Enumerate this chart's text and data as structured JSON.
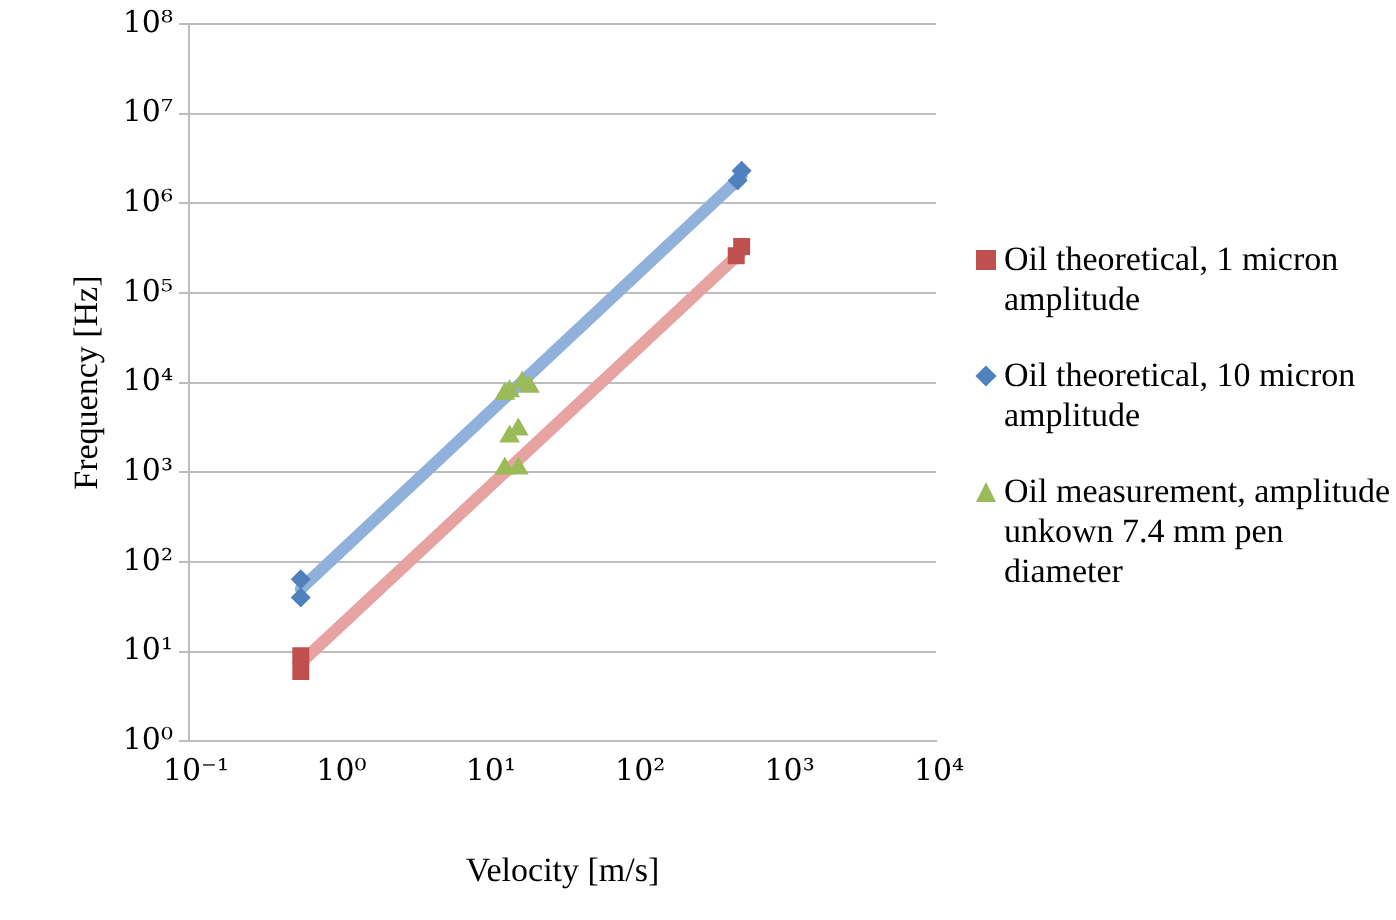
{
  "chart_data": {
    "type": "scatter",
    "xlabel": "Velocity [m/s]",
    "ylabel": "Frequency [Hz]",
    "log": "xy",
    "grid": "y",
    "legend": "right",
    "xlim": [
      0.1,
      10000
    ],
    "xticks": [
      {
        "value": 0.1,
        "label": "10⁻¹"
      },
      {
        "value": 1,
        "label": "10⁰"
      },
      {
        "value": 10,
        "label": "10¹"
      },
      {
        "value": 100,
        "label": "10²"
      },
      {
        "value": 1000,
        "label": "10³"
      },
      {
        "value": 10000,
        "label": "10⁴"
      }
    ],
    "ylim": [
      1,
      100000000
    ],
    "yticks": [
      {
        "value": 1,
        "label": "10⁰"
      },
      {
        "value": 10,
        "label": "10¹"
      },
      {
        "value": 100,
        "label": "10²"
      },
      {
        "value": 1000,
        "label": "10³"
      },
      {
        "value": 10000,
        "label": "10⁴"
      },
      {
        "value": 100000,
        "label": "10⁵"
      },
      {
        "value": 1000000,
        "label": "10⁶"
      },
      {
        "value": 10000000,
        "label": "10⁷"
      },
      {
        "value": 100000000,
        "label": "10⁸"
      }
    ],
    "series": [
      {
        "type": "line",
        "color": "#e6a3a2",
        "x": [
          0.56,
          500
        ],
        "values": [
          7.5,
          290000
        ],
        "marker": "none"
      },
      {
        "type": "line",
        "color": "#8fb1dc",
        "x": [
          0.56,
          500
        ],
        "values": [
          50,
          2000000
        ],
        "marker": "none"
      },
      {
        "name": "Oil theoretical, 1 micron amplitude",
        "color": "#c0504d",
        "marker": "square",
        "x": [
          0.56,
          0.56,
          460,
          500
        ],
        "values": [
          9,
          6,
          260000,
          330000
        ]
      },
      {
        "name": "Oil theoretical, 10 micron amplitude",
        "color": "#4f81bd",
        "marker": "diamond",
        "x": [
          0.56,
          0.56,
          470,
          500
        ],
        "values": [
          64,
          40,
          1800000,
          2300000
        ]
      },
      {
        "name": "Oil measurement, amplitude unkown 7.4 mm pen diameter",
        "color": "#9bbb59",
        "marker": "triangle",
        "x": [
          13,
          16,
          14,
          16,
          13,
          19,
          17,
          14
        ],
        "values": [
          1100,
          1100,
          2500,
          3000,
          7500,
          9000,
          10000,
          8000
        ]
      }
    ]
  }
}
